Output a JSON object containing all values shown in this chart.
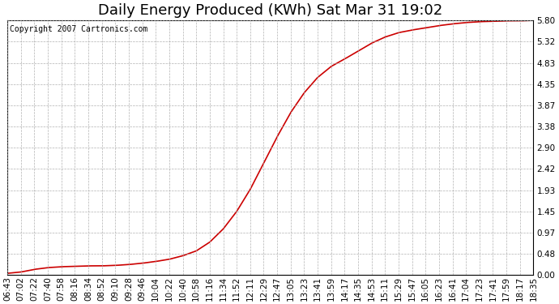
{
  "title": "Daily Energy Produced (KWh) Sat Mar 31 19:02",
  "copyright_text": "Copyright 2007 Cartronics.com",
  "line_color": "#cc0000",
  "background_color": "#ffffff",
  "plot_background": "#ffffff",
  "grid_color": "#aaaaaa",
  "ylim": [
    0.0,
    5.8
  ],
  "yticks": [
    0.0,
    0.48,
    0.97,
    1.45,
    1.93,
    2.42,
    2.9,
    3.38,
    3.87,
    4.35,
    4.83,
    5.32,
    5.8
  ],
  "xtick_labels": [
    "06:43",
    "07:02",
    "07:22",
    "07:40",
    "07:58",
    "08:16",
    "08:34",
    "08:52",
    "09:10",
    "09:28",
    "09:46",
    "10:04",
    "10:22",
    "10:40",
    "10:58",
    "11:16",
    "11:34",
    "11:52",
    "12:11",
    "12:29",
    "12:47",
    "13:05",
    "13:23",
    "13:41",
    "13:59",
    "14:17",
    "14:35",
    "14:53",
    "15:11",
    "15:29",
    "15:47",
    "16:05",
    "16:23",
    "16:41",
    "17:04",
    "17:23",
    "17:41",
    "17:59",
    "18:17",
    "18:35"
  ],
  "curve_x": [
    0,
    1,
    2,
    3,
    4,
    5,
    6,
    7,
    8,
    9,
    10,
    11,
    12,
    13,
    14,
    15,
    16,
    17,
    18,
    19,
    20,
    21,
    22,
    23,
    24,
    25,
    26,
    27,
    28,
    29,
    30,
    31,
    32,
    33,
    34,
    35,
    36,
    37,
    38,
    39
  ],
  "curve_y": [
    0.04,
    0.07,
    0.13,
    0.17,
    0.19,
    0.2,
    0.21,
    0.21,
    0.22,
    0.24,
    0.27,
    0.31,
    0.36,
    0.44,
    0.55,
    0.75,
    1.05,
    1.45,
    1.95,
    2.55,
    3.15,
    3.7,
    4.15,
    4.5,
    4.75,
    4.92,
    5.1,
    5.28,
    5.42,
    5.52,
    5.58,
    5.63,
    5.68,
    5.72,
    5.75,
    5.77,
    5.78,
    5.79,
    5.79,
    5.8
  ],
  "title_fontsize": 13,
  "tick_fontsize": 7.5,
  "copyright_fontsize": 7,
  "figsize": [
    6.9,
    3.75
  ],
  "dpi": 100
}
